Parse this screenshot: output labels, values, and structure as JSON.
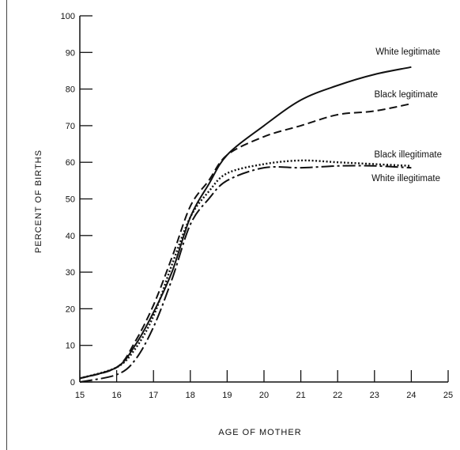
{
  "chart_data": {
    "type": "line",
    "title": "",
    "xlabel": "AGE OF MOTHER",
    "ylabel": "PERCENT OF BIRTHS",
    "xlim": [
      15,
      25
    ],
    "ylim": [
      0,
      100
    ],
    "x_ticks": [
      15,
      16,
      17,
      18,
      19,
      20,
      21,
      22,
      23,
      24,
      25
    ],
    "y_ticks": [
      0,
      10,
      20,
      30,
      40,
      50,
      60,
      70,
      80,
      90,
      100
    ],
    "grid": false,
    "legend": "direct labels at right end of each line",
    "series": [
      {
        "name": "White legitimate",
        "style": "solid",
        "x": [
          15,
          16,
          16.5,
          17,
          17.5,
          18,
          18.5,
          19,
          20,
          21,
          22,
          23,
          24
        ],
        "y": [
          1,
          4,
          10,
          19,
          30,
          45,
          54,
          62,
          70,
          77,
          81,
          84,
          86
        ]
      },
      {
        "name": "Black legitimate",
        "style": "dashed",
        "x": [
          15,
          16,
          16.5,
          17,
          17.5,
          18,
          18.5,
          19,
          20,
          21,
          22,
          23,
          24
        ],
        "y": [
          1,
          4,
          11,
          21,
          34,
          48,
          55,
          62,
          67,
          70,
          73,
          74,
          76
        ]
      },
      {
        "name": "Black illegitimate",
        "style": "dotted",
        "x": [
          15,
          16,
          16.5,
          17,
          17.5,
          18,
          18.5,
          19,
          20,
          21,
          22,
          23,
          24
        ],
        "y": [
          1,
          4,
          9,
          18,
          32,
          45,
          52,
          57,
          59.5,
          60.5,
          60,
          59.5,
          59
        ]
      },
      {
        "name": "White illegitimate",
        "style": "dash-dot",
        "x": [
          15,
          16,
          16.5,
          17,
          17.5,
          18,
          18.5,
          19,
          20,
          21,
          22,
          23,
          24
        ],
        "y": [
          0,
          2,
          6,
          15,
          28,
          43,
          50,
          55,
          58.5,
          58.5,
          59,
          59,
          58.5
        ]
      }
    ]
  }
}
